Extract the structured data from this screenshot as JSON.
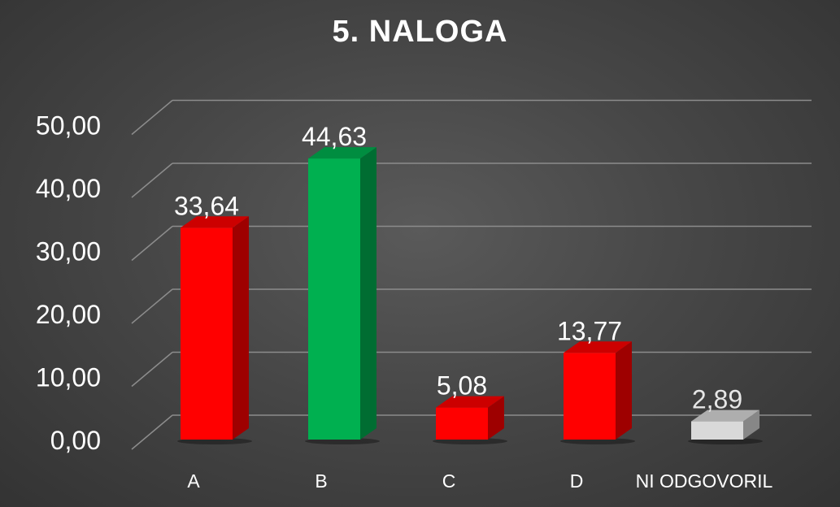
{
  "chart_data": {
    "type": "bar",
    "title": "5. NALOGA",
    "categories": [
      "A",
      "B",
      "C",
      "D",
      "NI ODGOVORIL"
    ],
    "values": [
      33.64,
      44.63,
      5.08,
      13.77,
      2.89
    ],
    "value_labels": [
      "33,64",
      "44,63",
      "5,08",
      "13,77",
      "2,89"
    ],
    "bar_colors": [
      "#ff0000",
      "#00b050",
      "#ff0000",
      "#ff0000",
      "#d9d9d9"
    ],
    "ylim": [
      0,
      50
    ],
    "y_ticks": [
      "0,00",
      "10,00",
      "20,00",
      "30,00",
      "40,00",
      "50,00"
    ],
    "xlabel": "",
    "ylabel": "",
    "grid": true,
    "legend": false,
    "style": "3d-column"
  },
  "colors": {
    "background": "#474747",
    "text": "#ffffff",
    "gridline": "#8c8c8c"
  }
}
